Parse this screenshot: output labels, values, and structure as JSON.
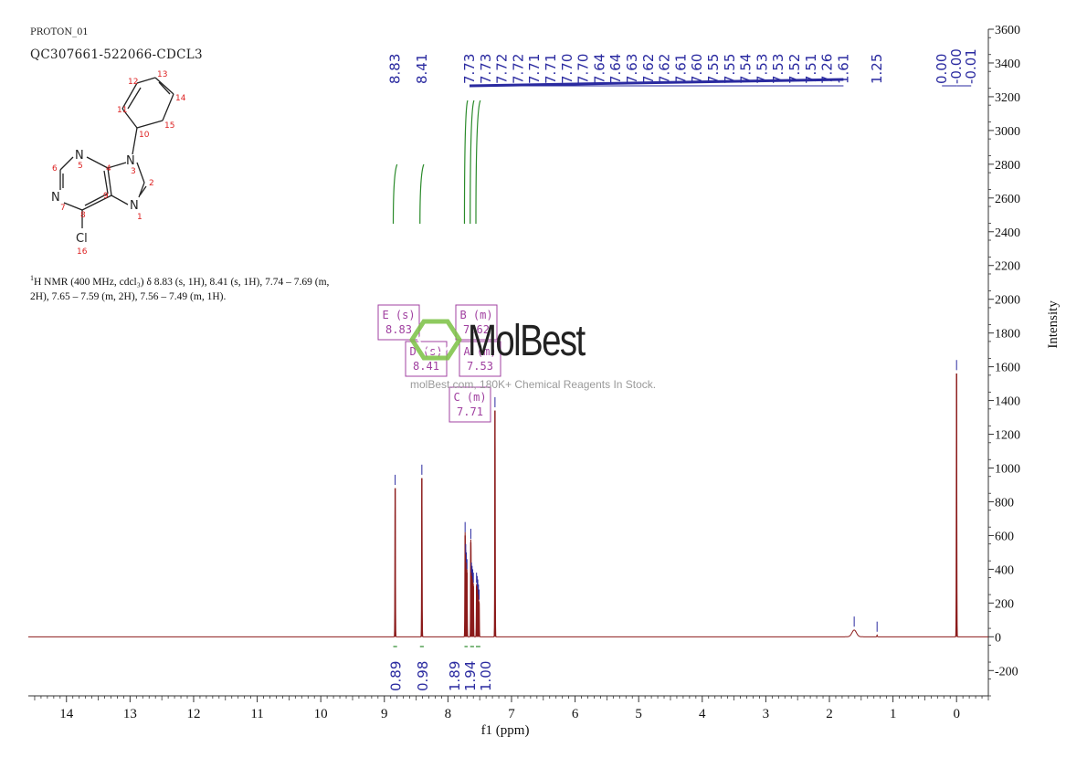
{
  "header": {
    "experiment": "PROTON_01",
    "sample": "QC307661-522066-CDCL3"
  },
  "nmr_description": {
    "nucleus_sup": "1",
    "text": "H NMR (400 MHz, cdcl₃) δ 8.83 (s, 1H), 8.41 (s, 1H), 7.74 – 7.69 (m, 2H), 7.65 – 7.59 (m, 2H), 7.56 – 7.49 (m, 1H)."
  },
  "watermark": {
    "brand": "MolBest",
    "tagline": "molBest.com, 180K+ Chemical Reagents In Stock."
  },
  "molecule": {
    "atoms": [
      "N",
      "N",
      "N",
      "N",
      "Cl"
    ],
    "numbers": [
      "1",
      "2",
      "3",
      "4",
      "5",
      "6",
      "7",
      "8",
      "9",
      "10",
      "11",
      "12",
      "13",
      "14",
      "15",
      "16"
    ]
  },
  "chart_data": {
    "type": "line",
    "xlabel": "f1 (ppm)",
    "ylabel": "Intensity",
    "xlim": [
      14.6,
      -0.5
    ],
    "ylim": [
      -350,
      3600
    ],
    "x_ticks": [
      14,
      13,
      12,
      11,
      10,
      9,
      8,
      7,
      6,
      5,
      4,
      3,
      2,
      1,
      0
    ],
    "y_ticks": [
      3600,
      3400,
      3200,
      3000,
      2800,
      2600,
      2400,
      2200,
      2000,
      1800,
      1600,
      1400,
      1200,
      1000,
      800,
      600,
      400,
      200,
      0,
      -200
    ],
    "peak_labels": [
      "8.83",
      "8.41",
      "7.73",
      "7.73",
      "7.72",
      "7.72",
      "7.71",
      "7.71",
      "7.70",
      "7.70",
      "7.64",
      "7.64",
      "7.63",
      "7.62",
      "7.62",
      "7.61",
      "7.60",
      "7.55",
      "7.55",
      "7.54",
      "7.53",
      "7.53",
      "7.52",
      "7.51",
      "7.26",
      "1.61",
      "1.25",
      "0.00",
      "-0.00",
      "-0.01"
    ],
    "peaks": [
      {
        "ppm": 8.83,
        "height": 880
      },
      {
        "ppm": 8.41,
        "height": 940
      },
      {
        "ppm": 7.73,
        "height": 600
      },
      {
        "ppm": 7.72,
        "height": 470
      },
      {
        "ppm": 7.71,
        "height": 420
      },
      {
        "ppm": 7.7,
        "height": 380
      },
      {
        "ppm": 7.64,
        "height": 560
      },
      {
        "ppm": 7.63,
        "height": 360
      },
      {
        "ppm": 7.62,
        "height": 340
      },
      {
        "ppm": 7.61,
        "height": 320
      },
      {
        "ppm": 7.6,
        "height": 300
      },
      {
        "ppm": 7.55,
        "height": 300
      },
      {
        "ppm": 7.54,
        "height": 280
      },
      {
        "ppm": 7.53,
        "height": 260
      },
      {
        "ppm": 7.52,
        "height": 230
      },
      {
        "ppm": 7.51,
        "height": 200
      },
      {
        "ppm": 7.26,
        "height": 1340
      },
      {
        "ppm": 1.61,
        "height": 40
      },
      {
        "ppm": 1.25,
        "height": 10
      },
      {
        "ppm": 0.0,
        "height": 1560
      }
    ],
    "integrals": [
      {
        "value": "0.89",
        "from": 8.86,
        "to": 8.8
      },
      {
        "value": "0.98",
        "from": 8.44,
        "to": 8.38
      },
      {
        "value": "1.89",
        "from": 7.74,
        "to": 7.69
      },
      {
        "value": "1.94",
        "from": 7.65,
        "to": 7.59
      },
      {
        "value": "1.00",
        "from": 7.56,
        "to": 7.49
      }
    ],
    "multiplets": [
      {
        "label": "E (s)",
        "shift": "8.83"
      },
      {
        "label": "D (s)",
        "shift": "8.41"
      },
      {
        "label": "B (m)",
        "shift": "7.62"
      },
      {
        "label": "A (m)",
        "shift": "7.53"
      },
      {
        "label": "C (m)",
        "shift": "7.71"
      }
    ],
    "colors": {
      "spectrum": "#8b1a1a",
      "peak_label": "#2a2aa0",
      "integral": "#2a8a2a",
      "multiplet_box": "#a040a0",
      "axis": "#333333"
    }
  }
}
